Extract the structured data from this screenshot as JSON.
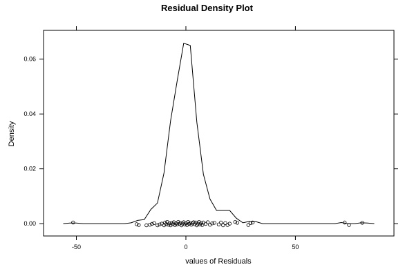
{
  "chart_data": {
    "type": "line",
    "title": "Residual Density Plot",
    "xlabel": "values of Residuals",
    "ylabel": "Density",
    "xlim": [
      -65,
      95
    ],
    "ylim": [
      -0.0045,
      0.0705
    ],
    "x_ticks": [
      -50,
      0,
      50
    ],
    "y_ticks": [
      0.0,
      0.02,
      0.04,
      0.06
    ],
    "x_tick_labels": [
      "-50",
      "0",
      "50"
    ],
    "y_tick_labels": [
      "0.00",
      "0.02",
      "0.04",
      "0.06"
    ],
    "grid": false,
    "series": [
      {
        "kind": "density-line",
        "points": [
          [
            -56,
            0.0
          ],
          [
            -53,
            0.0002
          ],
          [
            -50,
            0.0002
          ],
          [
            -47,
            0.0
          ],
          [
            -28,
            0.0
          ],
          [
            -25,
            0.0003
          ],
          [
            -22,
            0.0012
          ],
          [
            -19,
            0.0015
          ],
          [
            -16,
            0.0052
          ],
          [
            -13,
            0.0075
          ],
          [
            -10,
            0.0185
          ],
          [
            -7,
            0.0375
          ],
          [
            -4,
            0.052
          ],
          [
            -1,
            0.0658
          ],
          [
            2,
            0.065
          ],
          [
            5,
            0.037
          ],
          [
            8,
            0.018
          ],
          [
            11,
            0.009
          ],
          [
            14,
            0.0048
          ],
          [
            17,
            0.0048
          ],
          [
            20,
            0.0048
          ],
          [
            23,
            0.002
          ],
          [
            26,
            0.0003
          ],
          [
            29,
            0.0008
          ],
          [
            32,
            0.0007
          ],
          [
            35,
            0.0
          ],
          [
            68,
            0.0
          ],
          [
            71,
            0.0004
          ],
          [
            74,
            0.0
          ],
          [
            77,
            0.0
          ],
          [
            80,
            0.0003
          ],
          [
            83,
            0.0002
          ],
          [
            86,
            0.0
          ]
        ]
      },
      {
        "kind": "residual-rug",
        "points": [
          [
            -51.5,
            0.0004
          ],
          [
            -22.5,
            -0.0002
          ],
          [
            -21.5,
            -0.0005
          ],
          [
            -18,
            -0.0006
          ],
          [
            -16.5,
            -0.0004
          ],
          [
            -15.5,
            -0.0001
          ],
          [
            -14.5,
            0.0002
          ],
          [
            -13,
            -0.0006
          ],
          [
            -12,
            -0.0003
          ],
          [
            -11,
            0.0
          ],
          [
            -10,
            -0.0006
          ],
          [
            -9.5,
            0.0004
          ],
          [
            -9,
            -0.0002
          ],
          [
            -8.5,
            0.0006
          ],
          [
            -8,
            -0.0004
          ],
          [
            -7.5,
            0.0001
          ],
          [
            -7,
            -0.0006
          ],
          [
            -6.5,
            0.0003
          ],
          [
            -6,
            -0.0002
          ],
          [
            -5.5,
            0.0005
          ],
          [
            -5,
            -0.0005
          ],
          [
            -4.5,
            0.0001
          ],
          [
            -4,
            -0.0003
          ],
          [
            -3.5,
            0.0006
          ],
          [
            -3,
            -0.0001
          ],
          [
            -2.5,
            0.0003
          ],
          [
            -2,
            -0.0006
          ],
          [
            -1.5,
            0.0
          ],
          [
            -1,
            0.0005
          ],
          [
            -0.5,
            -0.0003
          ],
          [
            0,
            0.0002
          ],
          [
            0.5,
            -0.0005
          ],
          [
            1,
            0.0006
          ],
          [
            1.5,
            -0.0001
          ],
          [
            2,
            0.0003
          ],
          [
            2.5,
            -0.0004
          ],
          [
            3,
            0.0001
          ],
          [
            3.5,
            0.0005
          ],
          [
            4,
            -0.0002
          ],
          [
            4.5,
            0.0004
          ],
          [
            5,
            -0.0006
          ],
          [
            5.5,
            0.0
          ],
          [
            6,
            0.0006
          ],
          [
            6.5,
            -0.0003
          ],
          [
            7,
            0.0002
          ],
          [
            7.5,
            -0.0005
          ],
          [
            8,
            0.0004
          ],
          [
            9,
            -0.0001
          ],
          [
            10,
            0.0005
          ],
          [
            11,
            -0.0004
          ],
          [
            12,
            0.0001
          ],
          [
            13,
            0.0003
          ],
          [
            15,
            -0.0003
          ],
          [
            16,
            0.0004
          ],
          [
            17,
            -0.0006
          ],
          [
            18,
            0.0002
          ],
          [
            19,
            -0.0005
          ],
          [
            20,
            0.0
          ],
          [
            22.5,
            0.0006
          ],
          [
            23.5,
            0.0003
          ],
          [
            28.5,
            -0.0005
          ],
          [
            29.5,
            0.0002
          ],
          [
            30.5,
            0.0004
          ],
          [
            72.5,
            0.0004
          ],
          [
            74.5,
            -0.0005
          ],
          [
            80.5,
            0.0003
          ]
        ]
      }
    ]
  }
}
